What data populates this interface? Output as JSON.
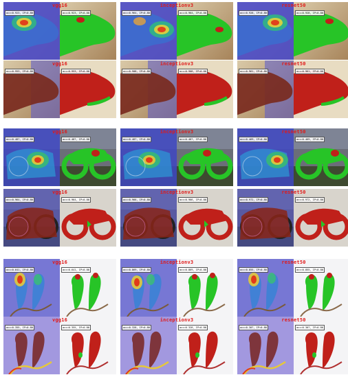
{
  "models": [
    "vgg16",
    "inceptionv3",
    "resnet50"
  ],
  "examples": [
    {
      "subject": "crocodile",
      "rows": [
        {
          "labels": [
            "vgg16",
            "inceptionv3",
            "resnet50"
          ],
          "metrics": [
            [
              "acc=0.923, IP=0.80",
              "acc=0.923, IP=0.80"
            ],
            [
              "acc=0.964, IP=0.80",
              "acc=0.964, IP=0.80"
            ],
            [
              "acc=0.928, IP=0.80",
              "acc=0.928, IP=0.80"
            ]
          ]
        },
        {
          "labels": [
            "vgg16",
            "inceptionv3",
            "resnet50"
          ],
          "metrics": [
            [
              "acc=0.953, IP=0.80",
              "acc=0.953, IP=0.80"
            ],
            [
              "acc=0.908, IP=0.80",
              "acc=0.908, IP=0.80"
            ],
            [
              "acc=0.961, IP=0.80",
              "acc=0.961, IP=0.80"
            ]
          ]
        }
      ]
    },
    {
      "subject": "motorcycle",
      "rows": [
        {
          "labels": [
            "vgg16",
            "inceptionv3",
            "resnet50"
          ],
          "metrics": [
            [
              "acc=0.487, IP=0.80",
              "acc=0.487, IP=0.80"
            ],
            [
              "acc=0.487, IP=0.80",
              "acc=0.487, IP=0.80"
            ],
            [
              "acc=0.469, IP=0.80",
              "acc=0.469, IP=0.80"
            ]
          ]
        },
        {
          "labels": [
            "vgg16",
            "inceptionv3",
            "resnet50"
          ],
          "metrics": [
            [
              "acc=0.964, IP=0.80",
              "acc=0.964, IP=0.80"
            ],
            [
              "acc=0.966, IP=0.80",
              "acc=0.966, IP=0.80"
            ],
            [
              "acc=0.972, IP=0.80",
              "acc=0.972, IP=0.80"
            ]
          ]
        }
      ]
    },
    {
      "subject": "parrots",
      "rows": [
        {
          "labels": [
            "vgg16",
            "inceptionv3",
            "resnet50"
          ],
          "metrics": [
            [
              "acc=0.641, IP=0.80",
              "acc=0.641, IP=0.80"
            ],
            [
              "acc=0.869, IP=0.80",
              "acc=0.869, IP=0.80"
            ],
            [
              "acc=0.855, IP=0.80",
              "acc=0.855, IP=0.80"
            ]
          ]
        },
        {
          "labels": [
            "vgg16",
            "inceptionv3",
            "resnet50"
          ],
          "metrics": [
            [
              "acc=0.355, IP=0.80",
              "acc=0.355, IP=0.80"
            ],
            [
              "acc=0.328, IP=0.80",
              "acc=0.328, IP=0.80"
            ],
            [
              "acc=0.307, IP=0.80",
              "acc=0.307, IP=0.80"
            ]
          ]
        }
      ]
    }
  ],
  "colors": {
    "label": "#e01a1a",
    "segment_green": "#27c427",
    "segment_red": "#c0201a",
    "heat_blue": "#5a5ad0"
  }
}
